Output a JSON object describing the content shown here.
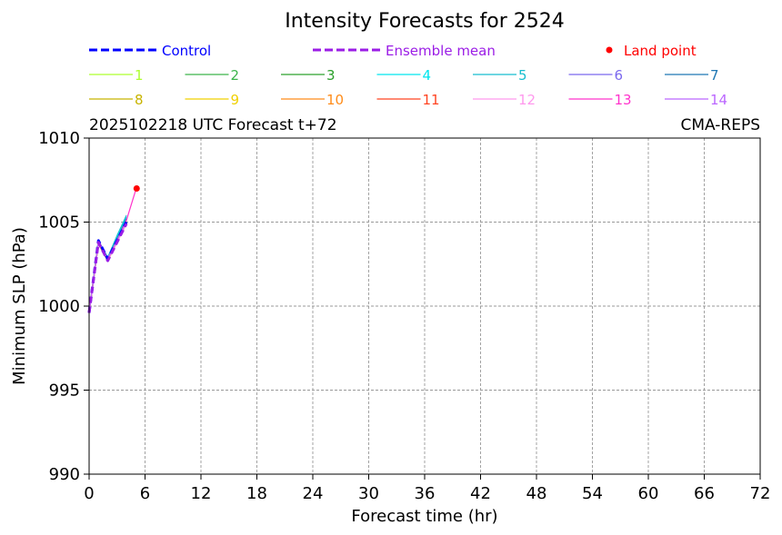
{
  "chart_data": {
    "type": "line",
    "title": "Intensity Forecasts for 2524",
    "subtitle_left": "2025102218 UTC Forecast t+72",
    "subtitle_right": "CMA-REPS",
    "xlabel": "Forecast time (hr)",
    "ylabel": "Minimum SLP (hPa)",
    "xlim": [
      0,
      72
    ],
    "ylim": [
      990,
      1010
    ],
    "xticks": [
      "0",
      "6",
      "12",
      "18",
      "24",
      "30",
      "36",
      "42",
      "48",
      "54",
      "60",
      "66",
      "72"
    ],
    "yticks": [
      "990",
      "995",
      "1000",
      "1005",
      "1010"
    ],
    "grid": true,
    "legend_placement": "top",
    "legend": {
      "control": "Control",
      "ensemble_mean": "Ensemble mean",
      "land_point": "Land point"
    },
    "series": [
      {
        "name": "Control",
        "style": "dashed",
        "color": "#0000ff",
        "x": [
          0,
          1,
          2,
          3,
          4
        ],
        "y": [
          999.6,
          1003.9,
          1002.8,
          1003.9,
          1005.0
        ]
      },
      {
        "name": "Ensemble mean",
        "style": "dashed",
        "color": "#9b1de6",
        "x": [
          0,
          1,
          2,
          3,
          4
        ],
        "y": [
          999.6,
          1003.8,
          1002.7,
          1003.8,
          1004.9
        ]
      },
      {
        "name": "1",
        "color": "#adff2f",
        "x": [
          0,
          1,
          2,
          3,
          4
        ],
        "y": [
          999.6,
          1003.8,
          1002.8,
          1003.9,
          1005.0
        ]
      },
      {
        "name": "2",
        "color": "#3cb44b",
        "x": [
          0,
          1,
          2,
          3,
          4
        ],
        "y": [
          999.7,
          1003.9,
          1002.8,
          1003.9,
          1004.9
        ]
      },
      {
        "name": "3",
        "color": "#2ca02c",
        "x": [
          0,
          1,
          2,
          3,
          4
        ],
        "y": [
          999.6,
          1003.7,
          1002.7,
          1003.8,
          1005.1
        ]
      },
      {
        "name": "4",
        "color": "#00e5ee",
        "x": [
          0,
          1,
          2,
          3,
          4
        ],
        "y": [
          999.6,
          1003.8,
          1002.9,
          1004.1,
          1005.3
        ]
      },
      {
        "name": "5",
        "color": "#17becf",
        "x": [
          0,
          1,
          2,
          3,
          4
        ],
        "y": [
          999.6,
          1003.9,
          1002.9,
          1004.2,
          1005.4
        ]
      },
      {
        "name": "6",
        "color": "#7b68ee",
        "x": [
          0,
          1,
          2,
          3,
          4
        ],
        "y": [
          999.6,
          1003.8,
          1002.8,
          1003.9,
          1005.0
        ]
      },
      {
        "name": "7",
        "color": "#1f77b4",
        "x": [
          0,
          1,
          2,
          3,
          4
        ],
        "y": [
          999.6,
          1003.9,
          1002.8,
          1004.0,
          1005.2
        ]
      },
      {
        "name": "8",
        "color": "#c8b400",
        "x": [
          0,
          1,
          2,
          3,
          4
        ],
        "y": [
          999.6,
          1003.8,
          1002.7,
          1003.8,
          1004.9
        ]
      },
      {
        "name": "9",
        "color": "#f0d000",
        "x": [
          0,
          1,
          2,
          3,
          4
        ],
        "y": [
          999.6,
          1003.8,
          1002.8,
          1003.9,
          1005.0
        ]
      },
      {
        "name": "10",
        "color": "#ff8c1a",
        "x": [
          0,
          1,
          2,
          3,
          4
        ],
        "y": [
          999.6,
          1003.7,
          1002.7,
          1003.8,
          1004.9
        ]
      },
      {
        "name": "11",
        "color": "#ff4422",
        "x": [
          0,
          1,
          2,
          3,
          4
        ],
        "y": [
          999.6,
          1003.8,
          1002.8,
          1003.9,
          1005.0
        ]
      },
      {
        "name": "12",
        "color": "#ff99ee",
        "x": [
          0,
          1,
          2,
          3,
          4
        ],
        "y": [
          999.6,
          1003.8,
          1002.7,
          1003.8,
          1004.9
        ]
      },
      {
        "name": "13",
        "color": "#ff33cc",
        "x": [
          0,
          1,
          2,
          3,
          4,
          5
        ],
        "y": [
          999.6,
          1003.8,
          1002.8,
          1003.9,
          1005.1,
          1006.9
        ]
      },
      {
        "name": "14",
        "color": "#bb66ff",
        "x": [
          0,
          1,
          2,
          3,
          4
        ],
        "y": [
          999.6,
          1003.8,
          1002.8,
          1003.9,
          1005.0
        ]
      }
    ],
    "land_points": [
      {
        "x": 5.1,
        "y": 1007.0,
        "color": "#ff0000"
      }
    ]
  }
}
